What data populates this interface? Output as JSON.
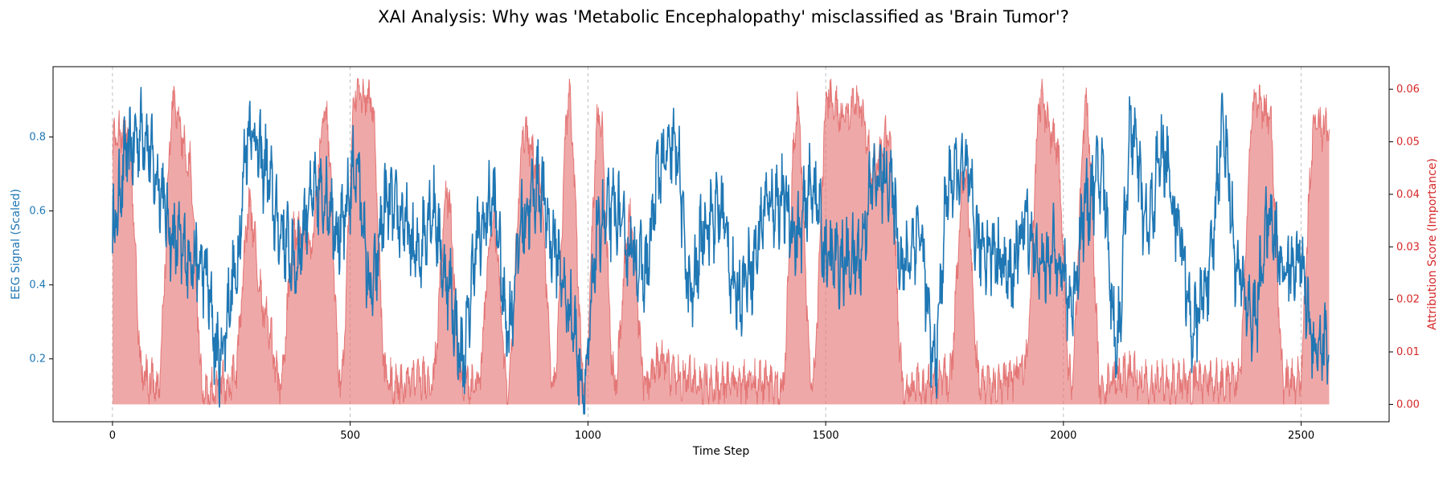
{
  "chart_data": {
    "type": "line",
    "title": "XAI Analysis: Why was 'Metabolic Encephalopathy' misclassified as 'Brain Tumor'?",
    "xlabel": "Time Step",
    "ylabel_left": "EEG Signal (Scaled)",
    "ylabel_right": "Attribution Score (Importance)",
    "xlim": [
      -125,
      2685
    ],
    "ylim_left": [
      0.03,
      0.99
    ],
    "ylim_right": [
      -0.0033,
      0.0643
    ],
    "x_ticks": [
      0,
      500,
      1000,
      1500,
      2000,
      2500
    ],
    "y_ticks_left": [
      0.2,
      0.4,
      0.6,
      0.8
    ],
    "y_ticks_right": [
      0.0,
      0.01,
      0.02,
      0.03,
      0.04,
      0.05,
      0.06
    ],
    "grid": "x-dashed",
    "n_points": 2560,
    "series": [
      {
        "axis": "left",
        "color": "#1f77b4",
        "style": "line",
        "x_start": 0,
        "x_end": 2559,
        "x_step": 32,
        "values": [
          0.55,
          0.76,
          0.82,
          0.68,
          0.52,
          0.48,
          0.44,
          0.2,
          0.41,
          0.83,
          0.72,
          0.55,
          0.46,
          0.63,
          0.64,
          0.54,
          0.72,
          0.38,
          0.62,
          0.58,
          0.48,
          0.61,
          0.41,
          0.2,
          0.52,
          0.63,
          0.29,
          0.58,
          0.67,
          0.51,
          0.34,
          0.13,
          0.56,
          0.6,
          0.5,
          0.43,
          0.72,
          0.77,
          0.37,
          0.57,
          0.6,
          0.37,
          0.45,
          0.62,
          0.63,
          0.53,
          0.67,
          0.47,
          0.46,
          0.47,
          0.68,
          0.69,
          0.45,
          0.55,
          0.19,
          0.68,
          0.71,
          0.51,
          0.49,
          0.42,
          0.57,
          0.45,
          0.49,
          0.35,
          0.62,
          0.7,
          0.25,
          0.82,
          0.55,
          0.76,
          0.58,
          0.28,
          0.41,
          0.82,
          0.42,
          0.31,
          0.57,
          0.44,
          0.47,
          0.24
        ]
      },
      {
        "axis": "right",
        "color": "#e57373",
        "style": "area",
        "x_start": 0,
        "x_end": 2559,
        "x_step": 32,
        "values": [
          0.05,
          0.053,
          0.005,
          0.004,
          0.057,
          0.047,
          0.002,
          0.004,
          0.005,
          0.037,
          0.018,
          0.004,
          0.033,
          0.03,
          0.056,
          0.005,
          0.06,
          0.058,
          0.004,
          0.004,
          0.005,
          0.004,
          0.04,
          0.004,
          0.004,
          0.035,
          0.003,
          0.052,
          0.045,
          0.004,
          0.058,
          0.005,
          0.056,
          0.004,
          0.035,
          0.004,
          0.008,
          0.005,
          0.005,
          0.004,
          0.004,
          0.004,
          0.004,
          0.004,
          0.003,
          0.056,
          0.004,
          0.059,
          0.054,
          0.058,
          0.045,
          0.051,
          0.003,
          0.003,
          0.004,
          0.005,
          0.044,
          0.004,
          0.004,
          0.005,
          0.008,
          0.058,
          0.05,
          0.004,
          0.057,
          0.002,
          0.005,
          0.006,
          0.004,
          0.004,
          0.004,
          0.004,
          0.005,
          0.004,
          0.005,
          0.058,
          0.056,
          0.004,
          0.005,
          0.053
        ]
      }
    ]
  }
}
